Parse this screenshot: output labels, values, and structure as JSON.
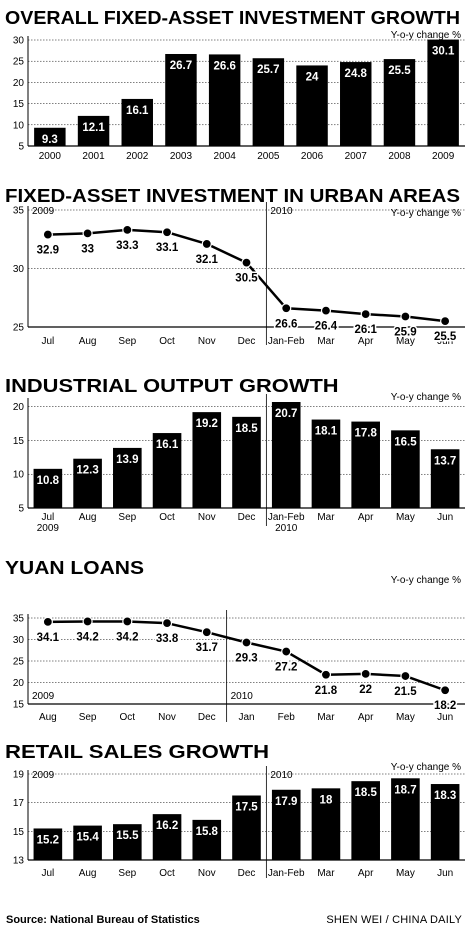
{
  "charts": [
    {
      "type": "bar",
      "title": "OVERALL FIXED-ASSET INVESTMENT GROWTH",
      "unit": "Y-o-y change %",
      "categories": [
        "2000",
        "2001",
        "2002",
        "2003",
        "2004",
        "2005",
        "2006",
        "2007",
        "2008",
        "2009"
      ],
      "values": [
        9.3,
        12.1,
        16.1,
        26.7,
        26.6,
        25.7,
        24,
        24.8,
        25.5,
        30.1
      ],
      "value_labels": [
        "9.3",
        "12.1",
        "16.1",
        "26.7",
        "26.6",
        "25.7",
        "24",
        "24.8",
        "25.5",
        "30.1"
      ],
      "yticks": [
        "5",
        "10",
        "15",
        "20",
        "25",
        "30"
      ],
      "ylim": [
        5,
        30
      ],
      "year_marks": [],
      "divider_after": null
    },
    {
      "type": "line",
      "title": "FIXED-ASSET INVESTMENT IN URBAN AREAS",
      "unit": "Y-o-y change %",
      "categories": [
        "Jul",
        "Aug",
        "Sep",
        "Oct",
        "Nov",
        "Dec",
        "Jan-Feb",
        "Mar",
        "Apr",
        "May",
        "Jun"
      ],
      "values": [
        32.9,
        33,
        33.3,
        33.1,
        32.1,
        30.5,
        26.6,
        26.4,
        26.1,
        25.9,
        25.5
      ],
      "value_labels": [
        "32.9",
        "33",
        "33.3",
        "33.1",
        "32.1",
        "30.5",
        "26.6",
        "26.4",
        "26.1",
        "25.9",
        "25.5"
      ],
      "yticks": [
        "25",
        "30",
        "35"
      ],
      "ylim": [
        25,
        35
      ],
      "year_marks": [
        {
          "text": "2009",
          "index": 0
        },
        {
          "text": "2010",
          "index": 6
        }
      ],
      "divider_after": 5
    },
    {
      "type": "bar",
      "title": "INDUSTRIAL OUTPUT GROWTH",
      "unit": "Y-o-y change %",
      "categories": [
        "Jul",
        "Aug",
        "Sep",
        "Oct",
        "Nov",
        "Dec",
        "Jan-Feb",
        "Mar",
        "Apr",
        "May",
        "Jun"
      ],
      "values": [
        10.8,
        12.3,
        13.9,
        16.1,
        19.2,
        18.5,
        20.7,
        18.1,
        17.8,
        16.5,
        13.7
      ],
      "value_labels": [
        "10.8",
        "12.3",
        "13.9",
        "16.1",
        "19.2",
        "18.5",
        "20.7",
        "18.1",
        "17.8",
        "16.5",
        "13.7"
      ],
      "yticks": [
        "5",
        "10",
        "15",
        "20"
      ],
      "ylim": [
        5,
        20.7
      ],
      "year_marks": [
        {
          "text": "2009",
          "index": 0
        },
        {
          "text": "2010",
          "index": 6
        }
      ],
      "divider_after": 5
    },
    {
      "type": "line",
      "title": "YUAN LOANS",
      "unit": "Y-o-y change %",
      "categories": [
        "Aug",
        "Sep",
        "Oct",
        "Nov",
        "Dec",
        "Jan",
        "Feb",
        "Mar",
        "Apr",
        "May",
        "Jun"
      ],
      "values": [
        34.1,
        34.2,
        34.2,
        33.8,
        31.7,
        29.3,
        27.2,
        21.8,
        22,
        21.5,
        18.2
      ],
      "value_labels": [
        "34.1",
        "34.2",
        "34.2",
        "33.8",
        "31.7",
        "29.3",
        "27.2",
        "21.8",
        "22",
        "21.5",
        "18.2"
      ],
      "yticks": [
        "15",
        "20",
        "25",
        "30",
        "35"
      ],
      "ylim": [
        15,
        35
      ],
      "year_marks": [
        {
          "text": "2009",
          "index": 0
        },
        {
          "text": "2010",
          "index": 5
        }
      ],
      "divider_after": 4
    },
    {
      "type": "bar",
      "title": "RETAIL SALES GROWTH",
      "unit": "Y-o-y change %",
      "categories": [
        "Jul",
        "Aug",
        "Sep",
        "Oct",
        "Nov",
        "Dec",
        "Jan-Feb",
        "Mar",
        "Apr",
        "May",
        "Jun"
      ],
      "values": [
        15.2,
        15.4,
        15.5,
        16.2,
        15.8,
        17.5,
        17.9,
        18,
        18.5,
        18.7,
        18.3
      ],
      "value_labels": [
        "15.2",
        "15.4",
        "15.5",
        "16.2",
        "15.8",
        "17.5",
        "17.9",
        "18",
        "18.5",
        "18.7",
        "18.3"
      ],
      "yticks": [
        "13",
        "15",
        "17",
        "19"
      ],
      "ylim": [
        13,
        19
      ],
      "year_marks": [
        {
          "text": "2009",
          "index": 0
        },
        {
          "text": "2010",
          "index": 6
        }
      ],
      "divider_after": 5
    }
  ],
  "footer": {
    "source": "Source: National Bureau of Statistics",
    "credit": "SHEN WEI / CHINA DAILY"
  }
}
